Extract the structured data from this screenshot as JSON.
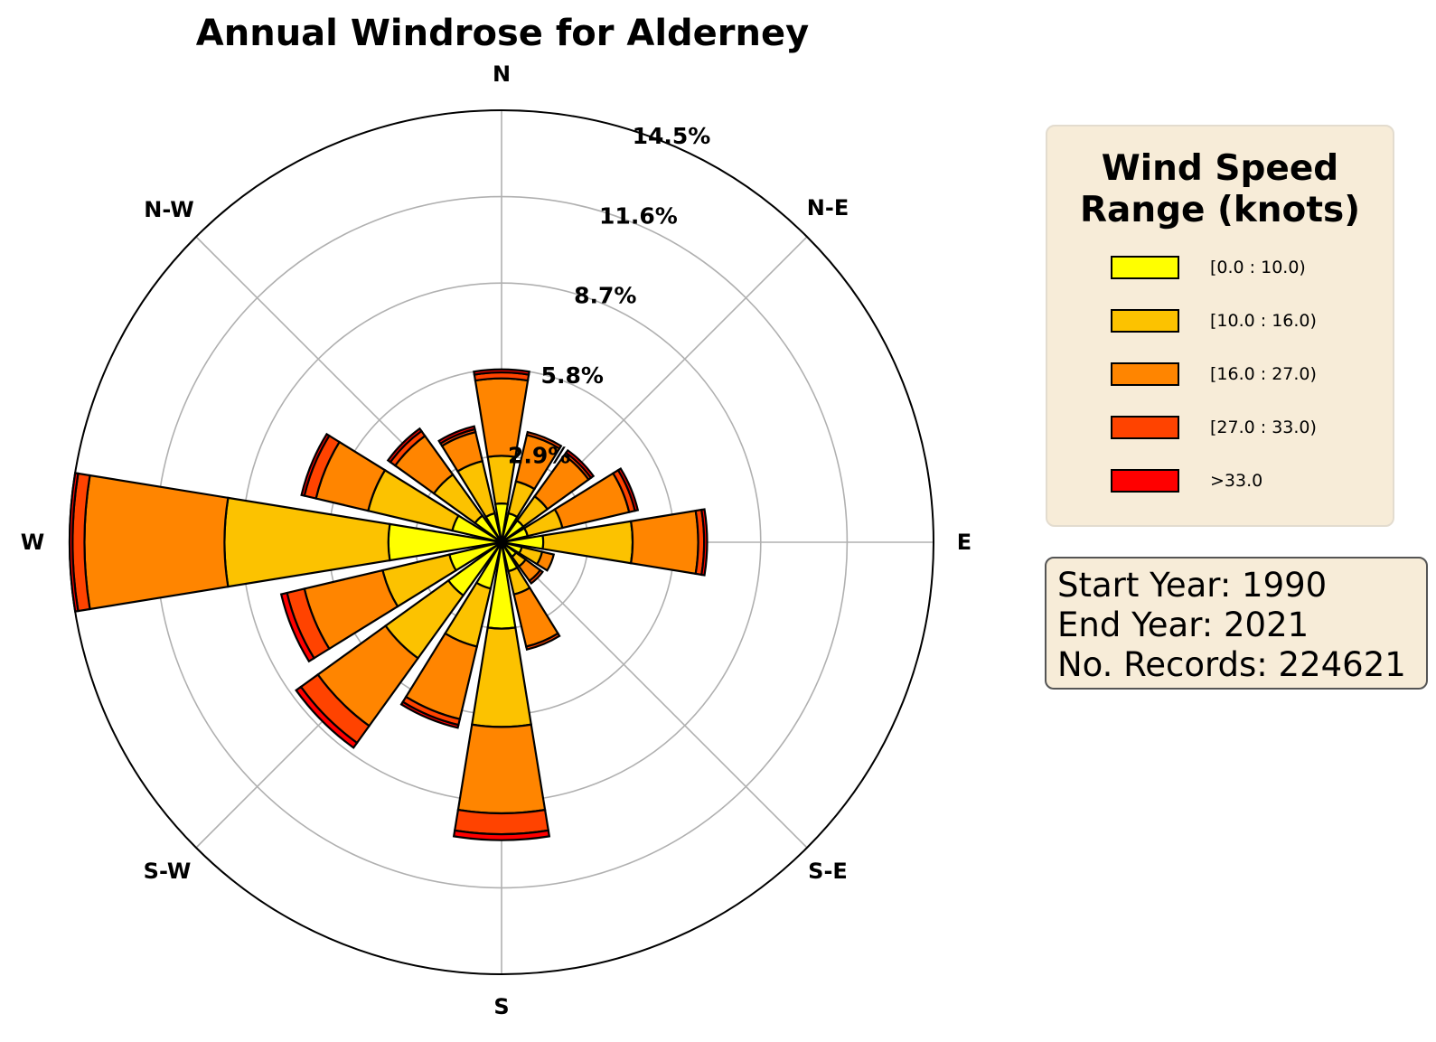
{
  "chart_data": {
    "type": "windrose",
    "title": "Annual Windrose for Alderney",
    "directions": [
      "N",
      "N-E",
      "E",
      "S-E",
      "S",
      "S-W",
      "W",
      "N-W"
    ],
    "radial_ticks": [
      "2.9%",
      "5.8%",
      "8.7%",
      "11.6%",
      "14.5%"
    ],
    "radial_tick_values": [
      2.9,
      5.8,
      8.7,
      11.6,
      14.5
    ],
    "rmax": 14.5,
    "sector_count": 16,
    "sector_angles_deg": [
      0,
      22.5,
      45,
      67.5,
      90,
      112.5,
      135,
      157.5,
      180,
      202.5,
      225,
      247.5,
      270,
      292.5,
      315,
      337.5
    ],
    "speed_bins": [
      "[0.0 : 10.0)",
      "[10.0 : 16.0)",
      "[16.0 : 27.0)",
      "[27.0 : 33.0)",
      ">33.0"
    ],
    "bin_colors": [
      "#ffff00",
      "#fcc200",
      "#ff8500",
      "#ff4300",
      "#ff0000"
    ],
    "cumulative_percent": [
      [
        1.3,
        2.9,
        5.5,
        5.7,
        5.8
      ],
      [
        1.0,
        2.1,
        3.7,
        3.8,
        3.8
      ],
      [
        0.9,
        1.9,
        3.6,
        3.7,
        3.8
      ],
      [
        0.9,
        2.1,
        4.4,
        4.6,
        4.7
      ],
      [
        1.4,
        4.4,
        6.6,
        6.8,
        6.9
      ],
      [
        0.7,
        1.4,
        1.8,
        1.8,
        1.8
      ],
      [
        0.6,
        1.0,
        1.6,
        1.7,
        1.7
      ],
      [
        1.0,
        1.8,
        3.6,
        3.7,
        3.7
      ],
      [
        2.9,
        6.2,
        9.1,
        9.8,
        10.0
      ],
      [
        1.6,
        3.6,
        6.1,
        6.3,
        6.4
      ],
      [
        2.2,
        4.8,
        7.6,
        8.3,
        8.5
      ],
      [
        1.8,
        4.1,
        6.8,
        7.4,
        7.6
      ],
      [
        3.8,
        9.3,
        14.0,
        14.4,
        14.5
      ],
      [
        1.7,
        4.6,
        6.4,
        6.8,
        6.9
      ],
      [
        1.1,
        2.8,
        4.4,
        4.6,
        4.7
      ],
      [
        1.0,
        2.8,
        3.8,
        3.9,
        4.0
      ]
    ]
  },
  "legend": {
    "title_line1": "Wind Speed",
    "title_line2": "Range (knots)",
    "items": [
      {
        "label": "[0.0 : 10.0)",
        "color": "#ffff00"
      },
      {
        "label": "[10.0 : 16.0)",
        "color": "#fcc200"
      },
      {
        "label": "[16.0 : 27.0)",
        "color": "#ff8500"
      },
      {
        "label": "[27.0 : 33.0)",
        "color": "#ff4300"
      },
      {
        "label": ">33.0",
        "color": "#ff0000"
      }
    ]
  },
  "info": {
    "start_year": "Start Year: 1990",
    "end_year": "End Year: 2021",
    "records": "No. Records: 224621"
  }
}
